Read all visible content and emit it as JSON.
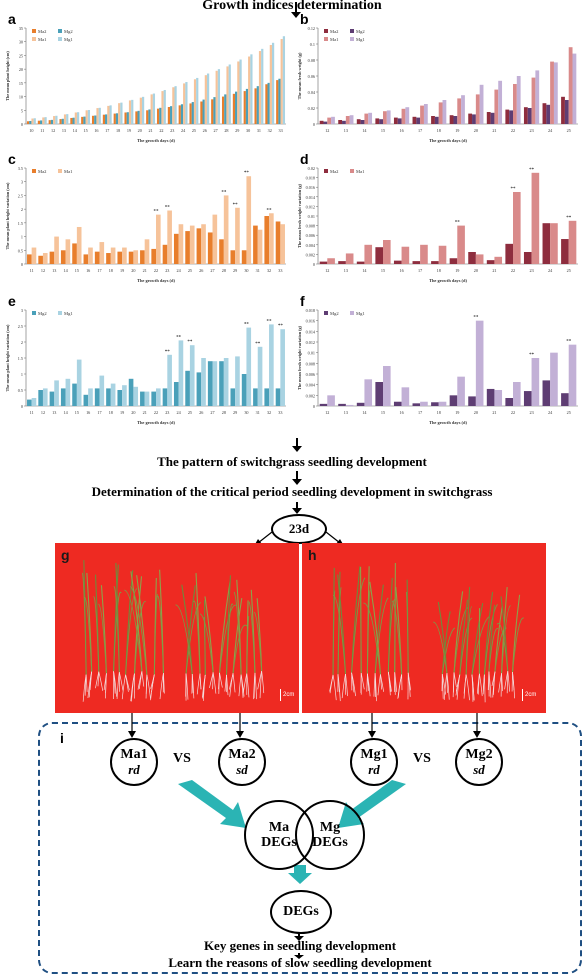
{
  "header": {
    "title": "Growth indices determination"
  },
  "flow": {
    "pattern": "The pattern of switchgrass seedling development",
    "critical": "Determination of the critical period seedling development in switchgrass",
    "day_node": "23d"
  },
  "photos": {
    "g": {
      "label": "g",
      "scale": "2cm"
    },
    "h": {
      "label": "h",
      "scale": "2cm"
    }
  },
  "bottom": {
    "panel_label": "i",
    "ma1": "Ma1",
    "ma1_sub": "rd",
    "ma2": "Ma2",
    "ma2_sub": "sd",
    "mg1": "Mg1",
    "mg1_sub": "rd",
    "mg2": "Mg2",
    "mg2_sub": "sd",
    "vs_left": "VS",
    "vs_right": "VS",
    "ma_degs_1": "Ma",
    "ma_degs_2": "DEGs",
    "mg_degs_1": "Mg",
    "mg_degs_2": "DEGs",
    "degs": "DEGs",
    "key_genes": "Key genes in seedling development",
    "reasons": "Learn the reasons of slow seedling development"
  },
  "colors": {
    "ma2": "#e87e2c",
    "ma1": "#f6c39a",
    "mg2": "#4aa0b9",
    "mg1": "#a9d3e2",
    "ma1_fresh": "#d98a8a",
    "ma2_fresh": "#8e2d3e",
    "mg2_fresh": "#5e3d73",
    "mg1_fresh": "#c2b0d6",
    "photo_bg": "#ee2a22",
    "arrow_teal": "#2bb4b4",
    "dash": "#1f4f82"
  },
  "chart_data": [
    {
      "panel": "a",
      "type": "bar",
      "ylabel": "The mean plant height (cm)",
      "xlabel": "The growth days (d)",
      "ylim": [
        0,
        35
      ],
      "yticks": [
        0,
        5,
        10,
        15,
        20,
        25,
        30,
        35
      ],
      "categories": [
        "10",
        "11",
        "12",
        "13",
        "14",
        "15",
        "16",
        "17",
        "18",
        "19",
        "20",
        "21",
        "22",
        "23",
        "24",
        "25",
        "26",
        "27",
        "28",
        "29",
        "30",
        "31",
        "32",
        "33"
      ],
      "legend": [
        "Ma2",
        "Mg2",
        "Ma1",
        "Mg1"
      ],
      "series": [
        {
          "name": "Ma2",
          "color": "#e87e2c",
          "values": [
            1.0,
            1.2,
            1.4,
            1.8,
            2.2,
            2.6,
            3.0,
            3.4,
            3.8,
            4.2,
            4.6,
            5.0,
            5.6,
            6.2,
            6.8,
            7.5,
            8.2,
            9.0,
            10.0,
            11.0,
            12.0,
            13.0,
            14.5,
            16.0
          ]
        },
        {
          "name": "Mg2",
          "color": "#4aa0b9",
          "values": [
            1.1,
            1.3,
            1.5,
            1.9,
            2.3,
            2.7,
            3.1,
            3.5,
            3.9,
            4.3,
            4.8,
            5.3,
            5.9,
            6.5,
            7.2,
            8.0,
            8.9,
            9.8,
            10.8,
            11.8,
            12.8,
            13.8,
            15.0,
            16.5
          ]
        },
        {
          "name": "Ma1",
          "color": "#f6c39a",
          "values": [
            2.0,
            2.4,
            2.9,
            3.5,
            4.2,
            5.0,
            5.8,
            6.6,
            7.6,
            8.6,
            9.6,
            10.8,
            12.0,
            13.4,
            14.8,
            16.3,
            17.8,
            19.4,
            21.0,
            22.8,
            24.6,
            26.6,
            28.8,
            31.0
          ]
        },
        {
          "name": "Mg1",
          "color": "#a9d3e2",
          "values": [
            2.1,
            2.5,
            3.0,
            3.6,
            4.3,
            5.1,
            5.9,
            6.8,
            7.8,
            8.8,
            9.9,
            11.1,
            12.4,
            13.8,
            15.3,
            16.8,
            18.4,
            20.0,
            21.7,
            23.5,
            25.4,
            27.4,
            29.6,
            32.0
          ]
        }
      ]
    },
    {
      "panel": "b",
      "type": "bar",
      "ylabel": "The mean fresh weight (g)",
      "xlabel": "The growth days (d)",
      "ylim": [
        0,
        0.12
      ],
      "yticks": [
        0,
        0.02,
        0.04,
        0.06,
        0.08,
        0.1,
        0.12
      ],
      "categories": [
        "12",
        "13",
        "14",
        "15",
        "16",
        "17",
        "18",
        "19",
        "20",
        "21",
        "22",
        "23",
        "24",
        "25"
      ],
      "legend": [
        "Ma2",
        "Mg2",
        "Ma1",
        "Mg1"
      ],
      "series": [
        {
          "name": "Ma2",
          "color": "#8e2d3e",
          "values": [
            0.004,
            0.005,
            0.006,
            0.007,
            0.008,
            0.009,
            0.01,
            0.011,
            0.013,
            0.015,
            0.018,
            0.021,
            0.026,
            0.034
          ]
        },
        {
          "name": "Mg2",
          "color": "#5e3d73",
          "values": [
            0.003,
            0.004,
            0.005,
            0.006,
            0.007,
            0.008,
            0.009,
            0.01,
            0.012,
            0.014,
            0.017,
            0.02,
            0.024,
            0.03
          ]
        },
        {
          "name": "Ma1",
          "color": "#d98a8a",
          "values": [
            0.008,
            0.01,
            0.013,
            0.016,
            0.019,
            0.023,
            0.027,
            0.032,
            0.037,
            0.043,
            0.05,
            0.058,
            0.078,
            0.096
          ]
        },
        {
          "name": "Mg1",
          "color": "#c2b0d6",
          "values": [
            0.009,
            0.011,
            0.014,
            0.017,
            0.021,
            0.025,
            0.03,
            0.036,
            0.049,
            0.054,
            0.06,
            0.067,
            0.077,
            0.088
          ]
        }
      ]
    },
    {
      "panel": "c",
      "type": "bar",
      "ylabel": "The mean plant height variation (cm)",
      "xlabel": "The growth days (d)",
      "ylim": [
        0,
        3.5
      ],
      "yticks": [
        0,
        0.5,
        1,
        1.5,
        2,
        2.5,
        3,
        3.5
      ],
      "categories": [
        "11",
        "12",
        "13",
        "14",
        "15",
        "16",
        "17",
        "18",
        "19",
        "20",
        "21",
        "22",
        "23",
        "24",
        "25",
        "26",
        "27",
        "28",
        "29",
        "30",
        "31",
        "32",
        "33"
      ],
      "legend": [
        "Ma2",
        "Ma1"
      ],
      "stars": [
        "22",
        "23",
        "28",
        "29",
        "30",
        "32"
      ],
      "series": [
        {
          "name": "Ma2",
          "color": "#e87e2c",
          "values": [
            0.35,
            0.3,
            0.45,
            0.5,
            0.75,
            0.35,
            0.45,
            0.4,
            0.45,
            0.45,
            0.5,
            0.55,
            0.7,
            1.1,
            1.2,
            1.3,
            1.15,
            0.9,
            0.5,
            0.5,
            1.4,
            1.75,
            1.55
          ]
        },
        {
          "name": "Ma1",
          "color": "#f6c39a",
          "values": [
            0.6,
            0.4,
            1.0,
            0.9,
            1.35,
            0.6,
            0.8,
            0.6,
            0.6,
            0.5,
            0.9,
            1.8,
            1.95,
            1.45,
            1.4,
            1.45,
            1.8,
            2.5,
            2.05,
            3.2,
            1.25,
            1.85,
            1.45
          ]
        }
      ]
    },
    {
      "panel": "d",
      "type": "bar",
      "ylabel": "The mean fresh weight variation (g)",
      "xlabel": "The growth days (d)",
      "ylim": [
        0,
        0.02
      ],
      "yticks": [
        0,
        0.002,
        0.004,
        0.006,
        0.008,
        0.01,
        0.012,
        0.014,
        0.016,
        0.018,
        0.02
      ],
      "categories": [
        "12",
        "13",
        "14",
        "15",
        "16",
        "17",
        "18",
        "19",
        "20",
        "21",
        "22",
        "23",
        "24",
        "25"
      ],
      "legend": [
        "Ma2",
        "Ma1"
      ],
      "stars": [
        "19",
        "22",
        "23",
        "25"
      ],
      "series": [
        {
          "name": "Ma2",
          "color": "#8e2d3e",
          "values": [
            0.0005,
            0.0006,
            0.0005,
            0.0035,
            0.0007,
            0.0006,
            0.0006,
            0.0012,
            0.0025,
            0.0008,
            0.0042,
            0.0025,
            0.0085,
            0.0052
          ]
        },
        {
          "name": "Ma1",
          "color": "#d98a8a",
          "values": [
            0.0012,
            0.0022,
            0.004,
            0.005,
            0.0036,
            0.004,
            0.0038,
            0.008,
            0.002,
            0.0015,
            0.015,
            0.019,
            0.0085,
            0.009
          ]
        }
      ]
    },
    {
      "panel": "e",
      "type": "bar",
      "ylabel": "The mean plant height variation (cm)",
      "xlabel": "The growth days (d)",
      "ylim": [
        0,
        3
      ],
      "yticks": [
        0,
        0.5,
        1,
        1.5,
        2,
        2.5,
        3
      ],
      "categories": [
        "11",
        "12",
        "13",
        "14",
        "15",
        "16",
        "17",
        "18",
        "19",
        "20",
        "21",
        "22",
        "23",
        "24",
        "25",
        "26",
        "27",
        "28",
        "29",
        "30",
        "31",
        "32",
        "33"
      ],
      "legend": [
        "Mg2",
        "Mg1"
      ],
      "stars": [
        "23",
        "24",
        "25",
        "30",
        "31",
        "32",
        "33"
      ],
      "series": [
        {
          "name": "Mg2",
          "color": "#4aa0b9",
          "values": [
            0.2,
            0.5,
            0.45,
            0.55,
            0.7,
            0.35,
            0.55,
            0.55,
            0.5,
            0.85,
            0.45,
            0.45,
            0.55,
            0.75,
            1.1,
            1.05,
            1.4,
            1.4,
            0.55,
            1.0,
            0.55,
            0.55,
            0.55
          ]
        },
        {
          "name": "Mg1",
          "color": "#a9d3e2",
          "values": [
            0.25,
            0.55,
            0.8,
            0.85,
            1.45,
            0.55,
            0.95,
            0.7,
            0.65,
            0.6,
            0.45,
            0.55,
            1.6,
            2.05,
            1.9,
            1.5,
            1.4,
            1.5,
            1.55,
            2.45,
            1.85,
            2.55,
            2.4
          ]
        }
      ]
    },
    {
      "panel": "f",
      "type": "bar",
      "ylabel": "The mean fresh weight variation (g)",
      "xlabel": "The growth days (d)",
      "ylim": [
        0,
        0.018
      ],
      "yticks": [
        0,
        0.002,
        0.004,
        0.006,
        0.008,
        0.01,
        0.012,
        0.014,
        0.016,
        0.018
      ],
      "categories": [
        "12",
        "13",
        "14",
        "15",
        "16",
        "17",
        "18",
        "19",
        "20",
        "21",
        "22",
        "23",
        "24",
        "25"
      ],
      "legend": [
        "Mg2",
        "Mg1"
      ],
      "stars": [
        "20",
        "23",
        "25"
      ],
      "series": [
        {
          "name": "Mg2",
          "color": "#5e3d73",
          "values": [
            0.0004,
            0.0004,
            0.0006,
            0.0045,
            0.0008,
            0.0005,
            0.0007,
            0.002,
            0.0018,
            0.0032,
            0.0015,
            0.0028,
            0.0048,
            0.0024
          ]
        },
        {
          "name": "Mg1",
          "color": "#c2b0d6",
          "values": [
            0.002,
            0.0002,
            0.005,
            0.0075,
            0.0035,
            0.0008,
            0.0008,
            0.0055,
            0.016,
            0.003,
            0.0045,
            0.009,
            0.01,
            0.0115
          ]
        }
      ]
    }
  ]
}
